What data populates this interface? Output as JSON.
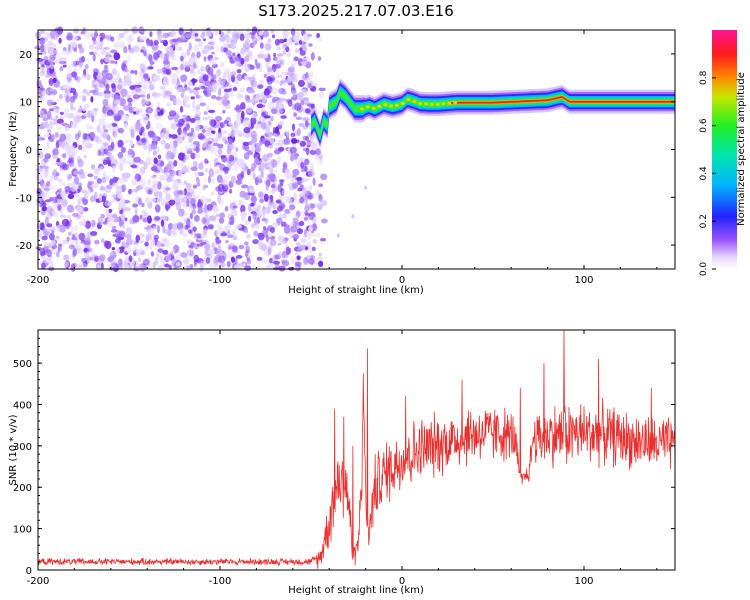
{
  "title": "S173.2025.217.07.03.E16",
  "chart_data": [
    {
      "type": "heatmap",
      "xlabel": "Height of straight line (km)",
      "ylabel": "Frequency (Hz)",
      "xlim": [
        -200,
        150
      ],
      "ylim": [
        -25,
        25
      ],
      "xticks": [
        -200,
        -100,
        0,
        100
      ],
      "yticks": [
        -20,
        -10,
        0,
        10,
        20
      ],
      "colorbar": {
        "label": "Normalized spectral amplitude",
        "range": [
          0,
          1
        ],
        "ticks": [
          "0.0",
          "0.2",
          "0.4",
          "0.6",
          "0.8"
        ]
      },
      "noise_region_x": [
        -200,
        -48
      ],
      "ridge": [
        [
          -50,
          5
        ],
        [
          -48,
          6
        ],
        [
          -45,
          3
        ],
        [
          -43,
          6
        ],
        [
          -41,
          5
        ],
        [
          -40,
          9
        ],
        [
          -38,
          9.5
        ],
        [
          -36,
          10
        ],
        [
          -34,
          12
        ],
        [
          -31,
          11
        ],
        [
          -29,
          10
        ],
        [
          -26,
          8.5
        ],
        [
          -22,
          8.5
        ],
        [
          -18,
          9
        ],
        [
          -15,
          8.5
        ],
        [
          -10,
          9.5
        ],
        [
          -5,
          9
        ],
        [
          0,
          9.5
        ],
        [
          3,
          10.5
        ],
        [
          6,
          10.2
        ],
        [
          10,
          9.6
        ],
        [
          15,
          9.5
        ],
        [
          20,
          9.5
        ],
        [
          30,
          9.8
        ],
        [
          50,
          9.8
        ],
        [
          80,
          10.3
        ],
        [
          88,
          11
        ],
        [
          92,
          10
        ],
        [
          100,
          10
        ],
        [
          120,
          10
        ],
        [
          150,
          10
        ]
      ]
    },
    {
      "type": "line",
      "xlabel": "Height of straight line (km)",
      "ylabel": "SNR (10 * v/v)",
      "xlim": [
        -200,
        150
      ],
      "ylim": [
        0,
        580
      ],
      "xticks": [
        -200,
        -100,
        0,
        100
      ],
      "yticks": [
        0,
        100,
        200,
        300,
        400,
        500
      ],
      "color": "#e8312f",
      "envelope": [
        [
          -200,
          20,
          12
        ],
        [
          -50,
          20,
          12
        ],
        [
          -45,
          30,
          40
        ],
        [
          -40,
          120,
          100
        ],
        [
          -35,
          220,
          140
        ],
        [
          -30,
          200,
          150
        ],
        [
          -27,
          30,
          40
        ],
        [
          -24,
          60,
          50
        ],
        [
          -21,
          380,
          200
        ],
        [
          -19,
          60,
          60
        ],
        [
          -15,
          200,
          120
        ],
        [
          -8,
          240,
          120
        ],
        [
          0,
          270,
          120
        ],
        [
          10,
          290,
          120
        ],
        [
          25,
          310,
          110
        ],
        [
          40,
          330,
          110
        ],
        [
          55,
          330,
          100
        ],
        [
          62,
          320,
          90
        ],
        [
          65,
          210,
          30
        ],
        [
          70,
          240,
          40
        ],
        [
          72,
          320,
          100
        ],
        [
          90,
          330,
          120
        ],
        [
          110,
          330,
          110
        ],
        [
          130,
          310,
          100
        ],
        [
          150,
          300,
          100
        ]
      ],
      "spikes": [
        [
          -37,
          390
        ],
        [
          -32,
          370
        ],
        [
          -27,
          300
        ],
        [
          -19,
          535
        ],
        [
          2,
          420
        ],
        [
          33,
          460
        ],
        [
          65,
          440
        ],
        [
          78,
          500
        ],
        [
          89,
          580
        ],
        [
          108,
          510
        ],
        [
          137,
          440
        ]
      ]
    }
  ]
}
